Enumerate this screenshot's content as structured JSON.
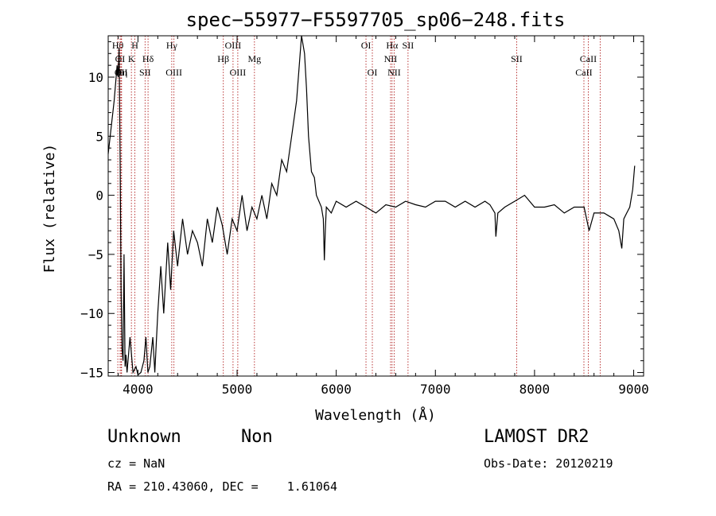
{
  "chart_data": {
    "type": "line",
    "title": "spec−55977−F5597705_sp06−248.fits",
    "xlabel": "Wavelength (Å)",
    "ylabel": "Flux (relative)",
    "xlim": [
      3700,
      9100
    ],
    "ylim": [
      -15.3,
      13.5
    ],
    "xticks": [
      4000,
      5000,
      6000,
      7000,
      8000,
      9000
    ],
    "yticks": [
      -15,
      -10,
      -5,
      0,
      5,
      10
    ],
    "grid": false,
    "series": [
      {
        "x": [
          3700,
          3760,
          3790,
          3800,
          3810,
          3820,
          3830,
          3840,
          3850,
          3860,
          3870,
          3880,
          3890,
          3900,
          3920,
          3950,
          3980,
          4000,
          4030,
          4060,
          4080,
          4100,
          4120,
          4150,
          4170,
          4200,
          4230,
          4260,
          4300,
          4330,
          4360,
          4400,
          4450,
          4500,
          4550,
          4600,
          4650,
          4700,
          4750,
          4800,
          4850,
          4900,
          4950,
          5000,
          5050,
          5100,
          5150,
          5200,
          5250,
          5300,
          5350,
          5400,
          5450,
          5500,
          5550,
          5600,
          5650,
          5680,
          5700,
          5720,
          5750,
          5780,
          5800,
          5850,
          5870,
          5880,
          5890,
          5900,
          5950,
          6000,
          6100,
          6200,
          6300,
          6400,
          6500,
          6600,
          6700,
          6800,
          6900,
          7000,
          7100,
          7200,
          7300,
          7400,
          7500,
          7550,
          7600,
          7610,
          7630,
          7700,
          7800,
          7900,
          8000,
          8100,
          8200,
          8300,
          8400,
          8500,
          8550,
          8600,
          8700,
          8800,
          8850,
          8880,
          8900,
          8930,
          8960,
          8990,
          9010
        ],
        "y": [
          3.5,
          8.0,
          11.0,
          10.0,
          12.5,
          3.0,
          -8.0,
          -13.0,
          -14.0,
          -5.0,
          -14.5,
          -13.5,
          -15.0,
          -14.0,
          -12.0,
          -15.0,
          -14.5,
          -15.2,
          -15.0,
          -14.0,
          -12.0,
          -15.0,
          -14.5,
          -12.0,
          -15.0,
          -10.0,
          -6.0,
          -10.0,
          -4.0,
          -8.0,
          -3.0,
          -6.0,
          -2.0,
          -5.0,
          -3.0,
          -4.0,
          -6.0,
          -2.0,
          -4.0,
          -1.0,
          -2.5,
          -5.0,
          -2.0,
          -3.0,
          0.0,
          -3.0,
          -1.0,
          -2.0,
          0.0,
          -2.0,
          1.0,
          0.0,
          3.0,
          2.0,
          5.0,
          8.0,
          13.5,
          12.0,
          9.0,
          5.0,
          2.0,
          1.5,
          0.0,
          -1.0,
          -2.0,
          -5.5,
          -3.0,
          -1.0,
          -1.5,
          -0.5,
          -1.0,
          -0.5,
          -1.0,
          -1.5,
          -0.8,
          -1.0,
          -0.5,
          -0.8,
          -1.0,
          -0.5,
          -0.5,
          -1.0,
          -0.5,
          -1.0,
          -0.5,
          -0.8,
          -1.5,
          -3.5,
          -1.5,
          -1.0,
          -0.5,
          0.0,
          -1.0,
          -1.0,
          -0.8,
          -1.5,
          -1.0,
          -1.0,
          -3.0,
          -1.5,
          -1.5,
          -2.0,
          -3.0,
          -4.5,
          -2.0,
          -1.5,
          -1.0,
          0.5,
          2.5
        ]
      }
    ],
    "lines": [
      {
        "name": "Hθ",
        "x": 3797,
        "row": 1
      },
      {
        "name": "OI",
        "x": 3820,
        "row": 2
      },
      {
        "name": "OII",
        "x": 3830,
        "row": 3
      },
      {
        "name": "Hη",
        "x": 3835,
        "row": 3
      },
      {
        "name": "H",
        "x": 3969,
        "row": 1
      },
      {
        "name": "K",
        "x": 3934,
        "row": 2
      },
      {
        "name": "SII",
        "x": 4072,
        "row": 3
      },
      {
        "name": "Hδ",
        "x": 4102,
        "row": 2
      },
      {
        "name": "Hγ",
        "x": 4341,
        "row": 1
      },
      {
        "name": "OIII",
        "x": 4363,
        "row": 3
      },
      {
        "name": "Hβ",
        "x": 4861,
        "row": 2
      },
      {
        "name": "OIII",
        "x": 4959,
        "row": 1
      },
      {
        "name": "OIII",
        "x": 5007,
        "row": 3
      },
      {
        "name": "Mg",
        "x": 5175,
        "row": 2
      },
      {
        "name": "OI",
        "x": 6300,
        "row": 1
      },
      {
        "name": "OI",
        "x": 6364,
        "row": 3
      },
      {
        "name": "Hα",
        "x": 6563,
        "row": 1
      },
      {
        "name": "NII",
        "x": 6548,
        "row": 2
      },
      {
        "name": "NII",
        "x": 6584,
        "row": 3
      },
      {
        "name": "SII",
        "x": 6724,
        "row": 1
      },
      {
        "name": "SII",
        "x": 7820,
        "row": 2
      },
      {
        "name": "CaII",
        "x": 8542,
        "row": 2
      },
      {
        "name": "CaII",
        "x": 8498,
        "row": 3
      },
      {
        "name": "",
        "x": 8662,
        "row": 0
      }
    ]
  },
  "info": {
    "class": "Unknown",
    "subclass": "Non",
    "survey": "LAMOST DR2",
    "cz": "cz = NaN",
    "obs_date": "Obs-Date: 20120219",
    "coords": "RA = 210.43060, DEC =    1.61064"
  }
}
